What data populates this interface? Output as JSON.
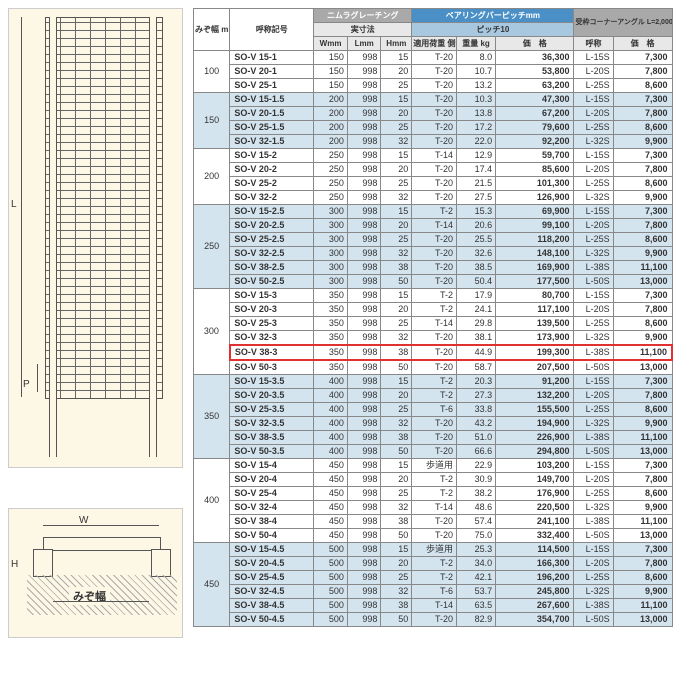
{
  "diagram": {
    "dim_L": "L",
    "dim_P": "P",
    "dim_W": "W",
    "dim_H": "H",
    "mizo_label": "みぞ幅"
  },
  "headers": {
    "mizo": "みぞ幅\nmm",
    "model": "呼称記号",
    "nimura": "ニムラグレーチング",
    "jissunpo": "実寸法",
    "w": "Wmm",
    "l": "Lmm",
    "h": "Hmm",
    "bearing": "ベアリングバーピッチmm",
    "pitch": "ピッチ10",
    "load": "適用荷重\n側溝",
    "kg": "重量\nkg",
    "price": "価　格",
    "corner": "受枠コーナーアングル\nL=2,000",
    "code": "呼称",
    "cprice": "価　格"
  },
  "groups": [
    {
      "mizo": "100",
      "band": false,
      "rows": [
        {
          "m": "SO-V 15-1",
          "w": "150",
          "l": "998",
          "h": "15",
          "ld": "T-20",
          "kg": "8.0",
          "p": "36,300",
          "c": "L-15S",
          "cp": "7,300"
        },
        {
          "m": "SO-V 20-1",
          "w": "150",
          "l": "998",
          "h": "20",
          "ld": "T-20",
          "kg": "10.7",
          "p": "53,800",
          "c": "L-20S",
          "cp": "7,800"
        },
        {
          "m": "SO-V 25-1",
          "w": "150",
          "l": "998",
          "h": "25",
          "ld": "T-20",
          "kg": "13.2",
          "p": "63,200",
          "c": "L-25S",
          "cp": "8,600"
        }
      ]
    },
    {
      "mizo": "150",
      "band": true,
      "rows": [
        {
          "m": "SO-V 15-1.5",
          "w": "200",
          "l": "998",
          "h": "15",
          "ld": "T-20",
          "kg": "10.3",
          "p": "47,300",
          "c": "L-15S",
          "cp": "7,300"
        },
        {
          "m": "SO-V 20-1.5",
          "w": "200",
          "l": "998",
          "h": "20",
          "ld": "T-20",
          "kg": "13.8",
          "p": "67,200",
          "c": "L-20S",
          "cp": "7,800"
        },
        {
          "m": "SO-V 25-1.5",
          "w": "200",
          "l": "998",
          "h": "25",
          "ld": "T-20",
          "kg": "17.2",
          "p": "79,600",
          "c": "L-25S",
          "cp": "8,600"
        },
        {
          "m": "SO-V 32-1.5",
          "w": "200",
          "l": "998",
          "h": "32",
          "ld": "T-20",
          "kg": "22.0",
          "p": "92,200",
          "c": "L-32S",
          "cp": "9,900"
        }
      ]
    },
    {
      "mizo": "200",
      "band": false,
      "rows": [
        {
          "m": "SO-V 15-2",
          "w": "250",
          "l": "998",
          "h": "15",
          "ld": "T-14",
          "kg": "12.9",
          "p": "59,700",
          "c": "L-15S",
          "cp": "7,300"
        },
        {
          "m": "SO-V 20-2",
          "w": "250",
          "l": "998",
          "h": "20",
          "ld": "T-20",
          "kg": "17.4",
          "p": "85,600",
          "c": "L-20S",
          "cp": "7,800"
        },
        {
          "m": "SO-V 25-2",
          "w": "250",
          "l": "998",
          "h": "25",
          "ld": "T-20",
          "kg": "21.5",
          "p": "101,300",
          "c": "L-25S",
          "cp": "8,600"
        },
        {
          "m": "SO-V 32-2",
          "w": "250",
          "l": "998",
          "h": "32",
          "ld": "T-20",
          "kg": "27.5",
          "p": "126,900",
          "c": "L-32S",
          "cp": "9,900"
        }
      ]
    },
    {
      "mizo": "250",
      "band": true,
      "rows": [
        {
          "m": "SO-V 15-2.5",
          "w": "300",
          "l": "998",
          "h": "15",
          "ld": "T-2",
          "kg": "15.3",
          "p": "69,900",
          "c": "L-15S",
          "cp": "7,300"
        },
        {
          "m": "SO-V 20-2.5",
          "w": "300",
          "l": "998",
          "h": "20",
          "ld": "T-14",
          "kg": "20.6",
          "p": "99,100",
          "c": "L-20S",
          "cp": "7,800"
        },
        {
          "m": "SO-V 25-2.5",
          "w": "300",
          "l": "998",
          "h": "25",
          "ld": "T-20",
          "kg": "25.5",
          "p": "118,200",
          "c": "L-25S",
          "cp": "8,600"
        },
        {
          "m": "SO-V 32-2.5",
          "w": "300",
          "l": "998",
          "h": "32",
          "ld": "T-20",
          "kg": "32.6",
          "p": "148,100",
          "c": "L-32S",
          "cp": "9,900"
        },
        {
          "m": "SO-V 38-2.5",
          "w": "300",
          "l": "998",
          "h": "38",
          "ld": "T-20",
          "kg": "38.5",
          "p": "169,900",
          "c": "L-38S",
          "cp": "11,100"
        },
        {
          "m": "SO-V 50-2.5",
          "w": "300",
          "l": "998",
          "h": "50",
          "ld": "T-20",
          "kg": "50.4",
          "p": "177,500",
          "c": "L-50S",
          "cp": "13,000"
        }
      ]
    },
    {
      "mizo": "300",
      "band": false,
      "rows": [
        {
          "m": "SO-V 15-3",
          "w": "350",
          "l": "998",
          "h": "15",
          "ld": "T-2",
          "kg": "17.9",
          "p": "80,700",
          "c": "L-15S",
          "cp": "7,300"
        },
        {
          "m": "SO-V 20-3",
          "w": "350",
          "l": "998",
          "h": "20",
          "ld": "T-2",
          "kg": "24.1",
          "p": "117,100",
          "c": "L-20S",
          "cp": "7,800"
        },
        {
          "m": "SO-V 25-3",
          "w": "350",
          "l": "998",
          "h": "25",
          "ld": "T-14",
          "kg": "29.8",
          "p": "139,500",
          "c": "L-25S",
          "cp": "8,600"
        },
        {
          "m": "SO-V 32-3",
          "w": "350",
          "l": "998",
          "h": "32",
          "ld": "T-20",
          "kg": "38.1",
          "p": "173,900",
          "c": "L-32S",
          "cp": "9,900"
        },
        {
          "m": "SO-V 38-3",
          "w": "350",
          "l": "998",
          "h": "38",
          "ld": "T-20",
          "kg": "44.9",
          "p": "199,300",
          "c": "L-38S",
          "cp": "11,100",
          "hl": true
        },
        {
          "m": "SO-V 50-3",
          "w": "350",
          "l": "998",
          "h": "50",
          "ld": "T-20",
          "kg": "58.7",
          "p": "207,500",
          "c": "L-50S",
          "cp": "13,000"
        }
      ]
    },
    {
      "mizo": "350",
      "band": true,
      "rows": [
        {
          "m": "SO-V 15-3.5",
          "w": "400",
          "l": "998",
          "h": "15",
          "ld": "T-2",
          "kg": "20.3",
          "p": "91,200",
          "c": "L-15S",
          "cp": "7,300"
        },
        {
          "m": "SO-V 20-3.5",
          "w": "400",
          "l": "998",
          "h": "20",
          "ld": "T-2",
          "kg": "27.3",
          "p": "132,200",
          "c": "L-20S",
          "cp": "7,800"
        },
        {
          "m": "SO-V 25-3.5",
          "w": "400",
          "l": "998",
          "h": "25",
          "ld": "T-6",
          "kg": "33.8",
          "p": "155,500",
          "c": "L-25S",
          "cp": "8,600"
        },
        {
          "m": "SO-V 32-3.5",
          "w": "400",
          "l": "998",
          "h": "32",
          "ld": "T-20",
          "kg": "43.2",
          "p": "194,900",
          "c": "L-32S",
          "cp": "9,900"
        },
        {
          "m": "SO-V 38-3.5",
          "w": "400",
          "l": "998",
          "h": "38",
          "ld": "T-20",
          "kg": "51.0",
          "p": "226,900",
          "c": "L-38S",
          "cp": "11,100"
        },
        {
          "m": "SO-V 50-3.5",
          "w": "400",
          "l": "998",
          "h": "50",
          "ld": "T-20",
          "kg": "66.6",
          "p": "294,800",
          "c": "L-50S",
          "cp": "13,000"
        }
      ]
    },
    {
      "mizo": "400",
      "band": false,
      "rows": [
        {
          "m": "SO-V 15-4",
          "w": "450",
          "l": "998",
          "h": "15",
          "ld": "歩道用",
          "kg": "22.9",
          "p": "103,200",
          "c": "L-15S",
          "cp": "7,300"
        },
        {
          "m": "SO-V 20-4",
          "w": "450",
          "l": "998",
          "h": "20",
          "ld": "T-2",
          "kg": "30.9",
          "p": "149,700",
          "c": "L-20S",
          "cp": "7,800"
        },
        {
          "m": "SO-V 25-4",
          "w": "450",
          "l": "998",
          "h": "25",
          "ld": "T-2",
          "kg": "38.2",
          "p": "176,900",
          "c": "L-25S",
          "cp": "8,600"
        },
        {
          "m": "SO-V 32-4",
          "w": "450",
          "l": "998",
          "h": "32",
          "ld": "T-14",
          "kg": "48.6",
          "p": "220,500",
          "c": "L-32S",
          "cp": "9,900"
        },
        {
          "m": "SO-V 38-4",
          "w": "450",
          "l": "998",
          "h": "38",
          "ld": "T-20",
          "kg": "57.4",
          "p": "241,100",
          "c": "L-38S",
          "cp": "11,100"
        },
        {
          "m": "SO-V 50-4",
          "w": "450",
          "l": "998",
          "h": "50",
          "ld": "T-20",
          "kg": "75.0",
          "p": "332,400",
          "c": "L-50S",
          "cp": "13,000"
        }
      ]
    },
    {
      "mizo": "450",
      "band": true,
      "rows": [
        {
          "m": "SO-V 15-4.5",
          "w": "500",
          "l": "998",
          "h": "15",
          "ld": "歩道用",
          "kg": "25.3",
          "p": "114,500",
          "c": "L-15S",
          "cp": "7,300"
        },
        {
          "m": "SO-V 20-4.5",
          "w": "500",
          "l": "998",
          "h": "20",
          "ld": "T-2",
          "kg": "34.0",
          "p": "166,300",
          "c": "L-20S",
          "cp": "7,800"
        },
        {
          "m": "SO-V 25-4.5",
          "w": "500",
          "l": "998",
          "h": "25",
          "ld": "T-2",
          "kg": "42.1",
          "p": "196,200",
          "c": "L-25S",
          "cp": "8,600"
        },
        {
          "m": "SO-V 32-4.5",
          "w": "500",
          "l": "998",
          "h": "32",
          "ld": "T-6",
          "kg": "53.7",
          "p": "245,800",
          "c": "L-32S",
          "cp": "9,900"
        },
        {
          "m": "SO-V 38-4.5",
          "w": "500",
          "l": "998",
          "h": "38",
          "ld": "T-14",
          "kg": "63.5",
          "p": "267,600",
          "c": "L-38S",
          "cp": "11,100"
        },
        {
          "m": "SO-V 50-4.5",
          "w": "500",
          "l": "998",
          "h": "50",
          "ld": "T-20",
          "kg": "82.9",
          "p": "354,700",
          "c": "L-50S",
          "cp": "13,000"
        }
      ]
    }
  ]
}
